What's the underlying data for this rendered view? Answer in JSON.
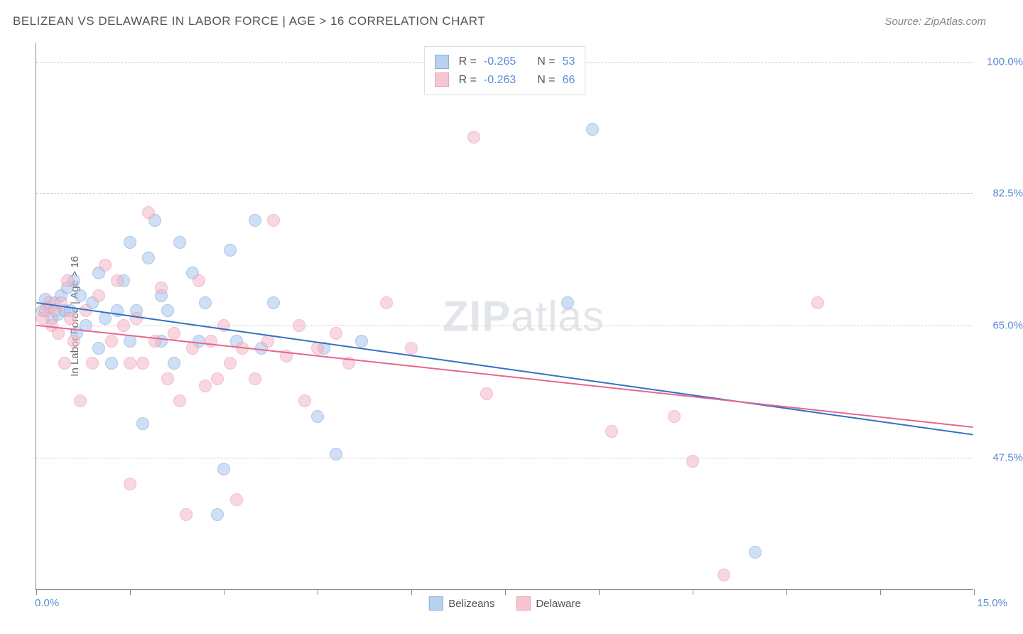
{
  "header": {
    "title": "BELIZEAN VS DELAWARE IN LABOR FORCE | AGE > 16 CORRELATION CHART",
    "source": "Source: ZipAtlas.com"
  },
  "chart": {
    "type": "scatter",
    "y_axis_title": "In Labor Force | Age > 16",
    "x_range": [
      0,
      15
    ],
    "y_range": [
      30,
      102.5
    ],
    "y_ticks": [
      {
        "value": 47.5,
        "label": "47.5%"
      },
      {
        "value": 65.0,
        "label": "65.0%"
      },
      {
        "value": 82.5,
        "label": "82.5%"
      },
      {
        "value": 100.0,
        "label": "100.0%"
      }
    ],
    "x_ticks": [
      0,
      1.5,
      3,
      4.5,
      6,
      7.5,
      9,
      10.5,
      12,
      13.5,
      15
    ],
    "x_min_label": "0.0%",
    "x_max_label": "15.0%",
    "series": [
      {
        "name": "belizeans",
        "label": "Belizeans",
        "fill_color": "#a8c6ed",
        "stroke_color": "#6b9bd4",
        "fill_opacity": 0.55,
        "r_value": "-0.265",
        "n_value": "53",
        "trend": {
          "x1": 0,
          "y1": 68.0,
          "x2": 15,
          "y2": 50.5,
          "color": "#3370c4",
          "width": 2
        },
        "points": [
          {
            "x": 0.1,
            "y": 67
          },
          {
            "x": 0.15,
            "y": 68.5
          },
          {
            "x": 0.2,
            "y": 67.5
          },
          {
            "x": 0.25,
            "y": 66
          },
          {
            "x": 0.3,
            "y": 68
          },
          {
            "x": 0.35,
            "y": 66.5
          },
          {
            "x": 0.4,
            "y": 69
          },
          {
            "x": 0.45,
            "y": 67
          },
          {
            "x": 0.5,
            "y": 70
          },
          {
            "x": 0.55,
            "y": 67
          },
          {
            "x": 0.6,
            "y": 71
          },
          {
            "x": 0.65,
            "y": 64
          },
          {
            "x": 0.7,
            "y": 69
          },
          {
            "x": 0.8,
            "y": 65
          },
          {
            "x": 0.9,
            "y": 68
          },
          {
            "x": 1.0,
            "y": 72
          },
          {
            "x": 1.0,
            "y": 62
          },
          {
            "x": 1.1,
            "y": 66
          },
          {
            "x": 1.2,
            "y": 60
          },
          {
            "x": 1.3,
            "y": 67
          },
          {
            "x": 1.4,
            "y": 71
          },
          {
            "x": 1.5,
            "y": 76
          },
          {
            "x": 1.5,
            "y": 63
          },
          {
            "x": 1.6,
            "y": 67
          },
          {
            "x": 1.7,
            "y": 52
          },
          {
            "x": 1.8,
            "y": 74
          },
          {
            "x": 1.9,
            "y": 79
          },
          {
            "x": 2.0,
            "y": 69
          },
          {
            "x": 2.0,
            "y": 63
          },
          {
            "x": 2.1,
            "y": 67
          },
          {
            "x": 2.2,
            "y": 60
          },
          {
            "x": 2.3,
            "y": 76
          },
          {
            "x": 2.5,
            "y": 72
          },
          {
            "x": 2.6,
            "y": 63
          },
          {
            "x": 2.7,
            "y": 68
          },
          {
            "x": 2.9,
            "y": 40
          },
          {
            "x": 3.0,
            "y": 46
          },
          {
            "x": 3.1,
            "y": 75
          },
          {
            "x": 3.2,
            "y": 63
          },
          {
            "x": 3.5,
            "y": 79
          },
          {
            "x": 3.6,
            "y": 62
          },
          {
            "x": 3.8,
            "y": 68
          },
          {
            "x": 4.5,
            "y": 53
          },
          {
            "x": 4.6,
            "y": 62
          },
          {
            "x": 4.8,
            "y": 48
          },
          {
            "x": 5.2,
            "y": 63
          },
          {
            "x": 8.5,
            "y": 68
          },
          {
            "x": 8.9,
            "y": 91
          },
          {
            "x": 11.5,
            "y": 35
          }
        ]
      },
      {
        "name": "delaware",
        "label": "Delaware",
        "fill_color": "#f4b7c7",
        "stroke_color": "#e88aa4",
        "fill_opacity": 0.55,
        "r_value": "-0.263",
        "n_value": "66",
        "trend": {
          "x1": 0,
          "y1": 65.0,
          "x2": 15,
          "y2": 51.5,
          "color": "#e8668e",
          "width": 2
        },
        "points": [
          {
            "x": 0.1,
            "y": 66
          },
          {
            "x": 0.15,
            "y": 67
          },
          {
            "x": 0.2,
            "y": 68
          },
          {
            "x": 0.25,
            "y": 65
          },
          {
            "x": 0.3,
            "y": 67
          },
          {
            "x": 0.35,
            "y": 64
          },
          {
            "x": 0.4,
            "y": 68
          },
          {
            "x": 0.45,
            "y": 60
          },
          {
            "x": 0.5,
            "y": 71
          },
          {
            "x": 0.55,
            "y": 66
          },
          {
            "x": 0.6,
            "y": 63
          },
          {
            "x": 0.7,
            "y": 55
          },
          {
            "x": 0.8,
            "y": 67
          },
          {
            "x": 0.9,
            "y": 60
          },
          {
            "x": 1.0,
            "y": 69
          },
          {
            "x": 1.1,
            "y": 73
          },
          {
            "x": 1.2,
            "y": 63
          },
          {
            "x": 1.3,
            "y": 71
          },
          {
            "x": 1.4,
            "y": 65
          },
          {
            "x": 1.5,
            "y": 60
          },
          {
            "x": 1.5,
            "y": 44
          },
          {
            "x": 1.6,
            "y": 66
          },
          {
            "x": 1.7,
            "y": 60
          },
          {
            "x": 1.8,
            "y": 80
          },
          {
            "x": 1.9,
            "y": 63
          },
          {
            "x": 2.0,
            "y": 70
          },
          {
            "x": 2.1,
            "y": 58
          },
          {
            "x": 2.2,
            "y": 64
          },
          {
            "x": 2.3,
            "y": 55
          },
          {
            "x": 2.4,
            "y": 40
          },
          {
            "x": 2.5,
            "y": 62
          },
          {
            "x": 2.6,
            "y": 71
          },
          {
            "x": 2.7,
            "y": 57
          },
          {
            "x": 2.8,
            "y": 63
          },
          {
            "x": 2.9,
            "y": 58
          },
          {
            "x": 3.0,
            "y": 65
          },
          {
            "x": 3.1,
            "y": 60
          },
          {
            "x": 3.2,
            "y": 42
          },
          {
            "x": 3.3,
            "y": 62
          },
          {
            "x": 3.5,
            "y": 58
          },
          {
            "x": 3.7,
            "y": 63
          },
          {
            "x": 3.8,
            "y": 79
          },
          {
            "x": 4.0,
            "y": 61
          },
          {
            "x": 4.2,
            "y": 65
          },
          {
            "x": 4.3,
            "y": 55
          },
          {
            "x": 4.5,
            "y": 62
          },
          {
            "x": 4.8,
            "y": 64
          },
          {
            "x": 5.0,
            "y": 60
          },
          {
            "x": 5.6,
            "y": 68
          },
          {
            "x": 6.0,
            "y": 62
          },
          {
            "x": 7.0,
            "y": 90
          },
          {
            "x": 7.2,
            "y": 56
          },
          {
            "x": 9.2,
            "y": 51
          },
          {
            "x": 10.2,
            "y": 53
          },
          {
            "x": 10.5,
            "y": 47
          },
          {
            "x": 11.0,
            "y": 32
          },
          {
            "x": 12.5,
            "y": 68
          }
        ]
      }
    ],
    "watermark": {
      "part1": "ZIP",
      "part2": "atlas"
    },
    "legend_top": {
      "r_label": "R =",
      "n_label": "N ="
    }
  }
}
